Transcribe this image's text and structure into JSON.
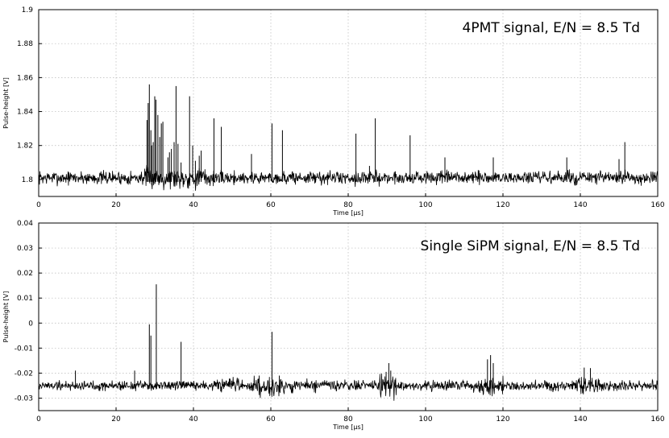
{
  "chart_data": [
    {
      "type": "line",
      "title": "4PMT signal, E/N = 8.5 Td",
      "xlabel": "Time [µs]",
      "ylabel": "Pulse-height [V]",
      "xlim": [
        0,
        160
      ],
      "ylim": [
        1.79,
        1.9
      ],
      "xticks": [
        0,
        20,
        40,
        60,
        80,
        100,
        120,
        140,
        160
      ],
      "yticks": [
        1.8,
        1.82,
        1.84,
        1.86,
        1.88,
        1.9
      ],
      "ytick_labels": [
        "1.8",
        "1.82",
        "1.84",
        "1.86",
        "1.88",
        "1.9"
      ],
      "grid": true,
      "baseline": 1.801,
      "noise_amplitude": 0.003,
      "series": [
        {
          "values": [
            [
              28.0,
              1.835
            ],
            [
              28.3,
              1.845
            ],
            [
              28.6,
              1.856
            ],
            [
              29.0,
              1.829
            ],
            [
              29.2,
              1.82
            ],
            [
              29.6,
              1.822
            ],
            [
              30.0,
              1.849
            ],
            [
              30.3,
              1.847
            ],
            [
              30.8,
              1.838
            ],
            [
              31.3,
              1.825
            ],
            [
              31.7,
              1.833
            ],
            [
              32.1,
              1.834
            ],
            [
              33.4,
              1.813
            ],
            [
              33.8,
              1.816
            ],
            [
              34.3,
              1.818
            ],
            [
              35.0,
              1.822
            ],
            [
              35.5,
              1.855
            ],
            [
              36.0,
              1.821
            ],
            [
              36.8,
              1.81
            ],
            [
              39.0,
              1.849
            ],
            [
              39.8,
              1.82
            ],
            [
              40.5,
              1.811
            ],
            [
              41.5,
              1.814
            ],
            [
              42.0,
              1.817
            ],
            [
              45.3,
              1.836
            ],
            [
              47.2,
              1.831
            ],
            [
              55.0,
              1.815
            ],
            [
              60.3,
              1.833
            ],
            [
              63.0,
              1.829
            ],
            [
              82.0,
              1.827
            ],
            [
              85.5,
              1.808
            ],
            [
              87.0,
              1.836
            ],
            [
              96.0,
              1.826
            ],
            [
              105.0,
              1.813
            ],
            [
              117.5,
              1.813
            ],
            [
              136.5,
              1.813
            ],
            [
              150.0,
              1.812
            ],
            [
              151.5,
              1.822
            ]
          ]
        }
      ]
    },
    {
      "type": "line",
      "title": "Single SiPM signal, E/N = 8.5 Td",
      "xlabel": "Time [µs]",
      "ylabel": "Pulse-height [V]",
      "xlim": [
        0,
        160
      ],
      "ylim": [
        -0.035,
        0.04
      ],
      "xticks": [
        0,
        20,
        40,
        60,
        80,
        100,
        120,
        140,
        160
      ],
      "yticks": [
        -0.03,
        -0.02,
        -0.01,
        0,
        0.01,
        0.02,
        0.03,
        0.04
      ],
      "ytick_labels": [
        "-0.03",
        "-0.02",
        "-0.01",
        "0",
        "0.01",
        "0.02",
        "0.03",
        "0.04"
      ],
      "grid": true,
      "baseline": -0.025,
      "noise_amplitude": 0.0015,
      "series": [
        {
          "values": [
            [
              9.5,
              -0.019
            ],
            [
              24.8,
              -0.019
            ],
            [
              28.6,
              -0.0005
            ],
            [
              29.0,
              -0.005
            ],
            [
              30.4,
              0.0155
            ],
            [
              36.8,
              -0.0075
            ],
            [
              60.3,
              -0.0035
            ],
            [
              89.8,
              -0.0195
            ],
            [
              90.5,
              -0.016
            ],
            [
              116.0,
              -0.0145
            ],
            [
              116.8,
              -0.0128
            ],
            [
              141.0,
              -0.0178
            ],
            [
              142.6,
              -0.018
            ],
            [
              57.0,
              -0.021
            ],
            [
              62.2,
              -0.021
            ],
            [
              91.0,
              -0.019
            ],
            [
              117.5,
              -0.016
            ]
          ]
        }
      ]
    }
  ]
}
